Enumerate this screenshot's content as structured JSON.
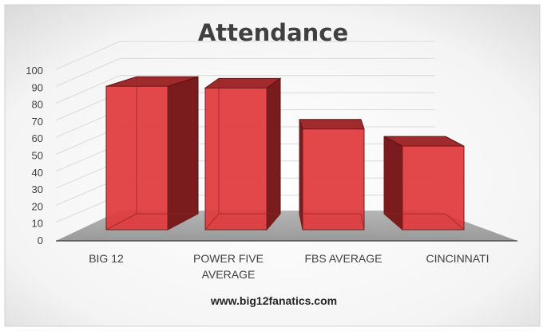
{
  "chart_data": {
    "type": "bar",
    "title": "Attendance",
    "categories": [
      "BIG 12",
      "POWER FIVE AVERAGE",
      "FBS AVERAGE",
      "CINCINNATI"
    ],
    "category_lines": [
      [
        "BIG 12"
      ],
      [
        "POWER FIVE",
        "AVERAGE"
      ],
      [
        "FBS AVERAGE"
      ],
      [
        "CINCINNATI"
      ]
    ],
    "series": [
      {
        "values": [
          84,
          83,
          59,
          49
        ]
      }
    ],
    "ylim": [
      0,
      100
    ],
    "yticks": [
      "0",
      "10",
      "20",
      "30",
      "40",
      "50",
      "60",
      "70",
      "80",
      "90",
      "100"
    ],
    "xlabel": "",
    "ylabel": "",
    "grid": true,
    "style": "3d-column",
    "bar_color": "#e03a3c",
    "source": "www.big12fanatics.com"
  }
}
